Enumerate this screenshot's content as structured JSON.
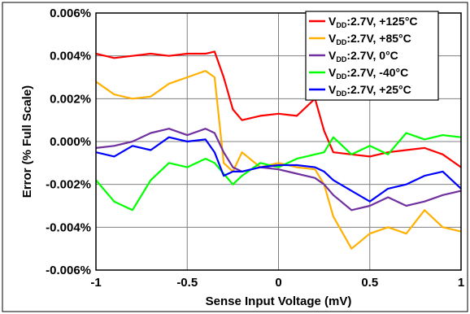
{
  "chart_data": {
    "type": "line",
    "title": "",
    "xlabel": "Sense Input Voltage (mV)",
    "ylabel": "Error (% Full Scale)",
    "xlim": [
      -1,
      1
    ],
    "ylim": [
      -0.006,
      0.006
    ],
    "x_ticks": [
      -1,
      -0.5,
      0,
      0.5,
      1
    ],
    "x_tick_labels": [
      "-1",
      "-0.5",
      "0",
      "0.5",
      "1"
    ],
    "y_ticks": [
      -0.006,
      -0.004,
      -0.002,
      0,
      0.002,
      0.004,
      0.006
    ],
    "y_tick_labels": [
      "-0.006%",
      "-0.004%",
      "-0.002%",
      "0.000%",
      "0.002%",
      "0.004%",
      "0.006%"
    ],
    "grid": true,
    "legend_position": "top-right",
    "x": [
      -1,
      -0.9,
      -0.8,
      -0.7,
      -0.6,
      -0.5,
      -0.4,
      -0.35,
      -0.3,
      -0.25,
      -0.2,
      -0.1,
      0,
      0.1,
      0.2,
      0.25,
      0.3,
      0.4,
      0.5,
      0.6,
      0.7,
      0.8,
      0.9,
      1
    ],
    "series": [
      {
        "name": "VDD:2.7V, +125°C",
        "label_main": "V",
        "label_sub": "DD",
        "label_rest": ":2.7V, +125°C",
        "color": "#ff0000",
        "values": [
          0.0041,
          0.0039,
          0.004,
          0.0041,
          0.004,
          0.0041,
          0.0041,
          0.0042,
          0.003,
          0.0015,
          0.001,
          0.0012,
          0.0013,
          0.0012,
          0.002,
          0.0005,
          -0.0005,
          -0.0006,
          -0.0007,
          -0.0005,
          -0.0004,
          -0.0003,
          -0.0006,
          -0.0012
        ]
      },
      {
        "name": "VDD:2.7V, +85°C",
        "label_main": "V",
        "label_sub": "DD",
        "label_rest": ":2.7V, +85°C",
        "color": "#ffb000",
        "values": [
          0.0028,
          0.0022,
          0.002,
          0.0021,
          0.0027,
          0.003,
          0.0033,
          0.003,
          -0.001,
          -0.0014,
          -0.0005,
          -0.0012,
          -0.001,
          -0.0012,
          -0.0013,
          -0.002,
          -0.0035,
          -0.005,
          -0.0043,
          -0.004,
          -0.0043,
          -0.0032,
          -0.004,
          -0.0042
        ]
      },
      {
        "name": "VDD:2.7V, 0°C",
        "label_main": "V",
        "label_sub": "DD",
        "label_rest": ":2.7V, 0°C",
        "color": "#7030a0",
        "values": [
          -0.0003,
          -0.0002,
          0.0,
          0.0004,
          0.0006,
          0.0003,
          0.0006,
          0.0004,
          -0.0005,
          -0.0012,
          -0.0014,
          -0.0012,
          -0.0013,
          -0.0015,
          -0.0017,
          -0.002,
          -0.0025,
          -0.0032,
          -0.003,
          -0.0026,
          -0.003,
          -0.0028,
          -0.0025,
          -0.0023
        ]
      },
      {
        "name": "VDD:2.7V, -40°C",
        "label_main": "V",
        "label_sub": "DD",
        "label_rest": ":2.7V, -40°C",
        "color": "#00ff00",
        "values": [
          -0.0018,
          -0.0028,
          -0.0032,
          -0.0018,
          -0.001,
          -0.0012,
          -0.0008,
          -0.001,
          -0.0015,
          -0.002,
          -0.0016,
          -0.001,
          -0.0012,
          -0.0008,
          -0.0006,
          -0.0005,
          0.0002,
          -0.0006,
          -0.0002,
          -0.0006,
          0.0004,
          0.0001,
          0.0003,
          0.0002
        ]
      },
      {
        "name": "VDD:2.7V, +25°C",
        "label_main": "V",
        "label_sub": "DD",
        "label_rest": ":2.7V, +25°C",
        "color": "#0000ff",
        "values": [
          -0.0005,
          -0.0007,
          -0.0002,
          -0.0004,
          0.0002,
          0.0,
          0.0001,
          -0.0005,
          -0.0016,
          -0.0014,
          -0.0014,
          -0.0012,
          -0.0011,
          -0.0011,
          -0.0012,
          -0.0014,
          -0.0018,
          -0.0023,
          -0.0028,
          -0.0022,
          -0.002,
          -0.0016,
          -0.0014,
          -0.0022
        ]
      }
    ]
  }
}
